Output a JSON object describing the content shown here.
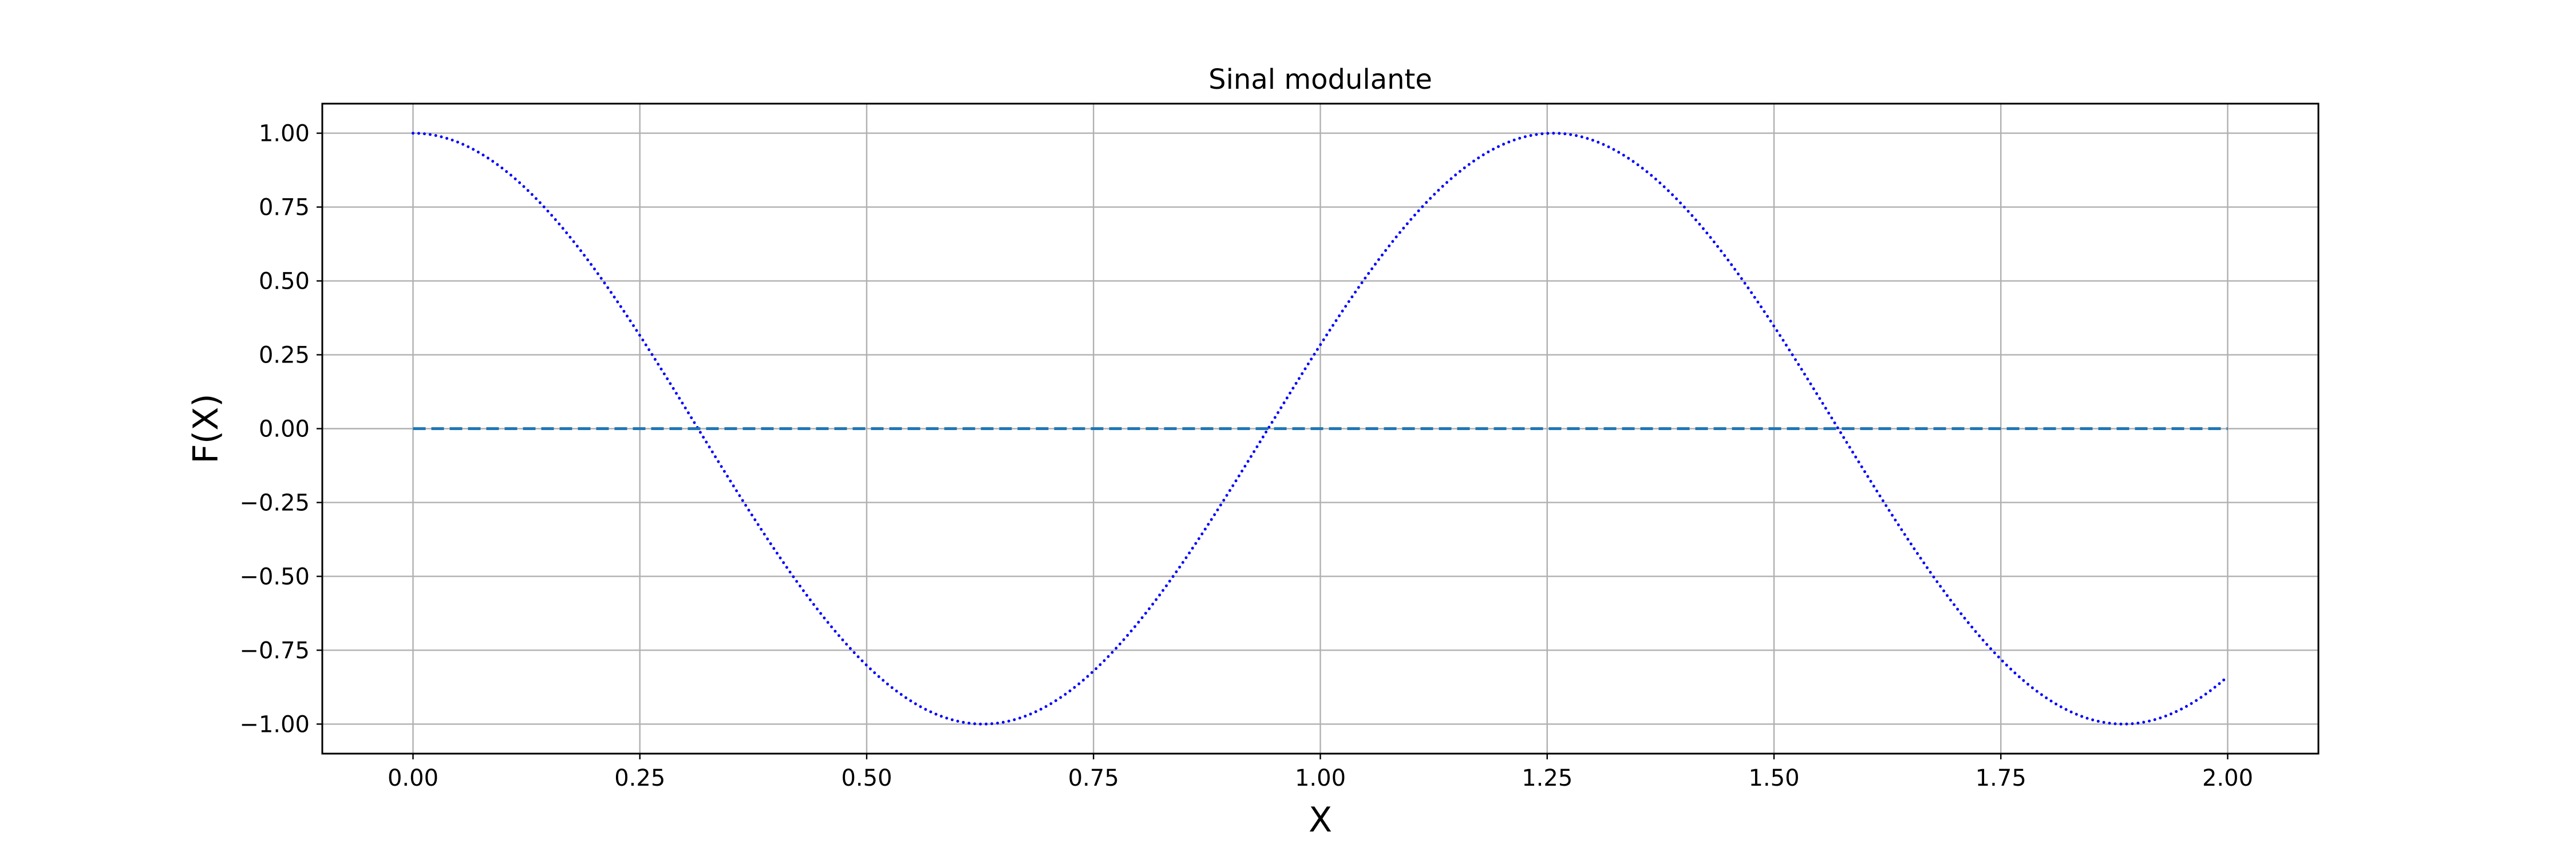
{
  "chart_data": {
    "type": "line",
    "title": "Sinal modulante",
    "xlabel": "X",
    "ylabel": "F(X)",
    "xlim": [
      -0.1,
      2.1
    ],
    "ylim": [
      -1.1,
      1.1
    ],
    "xticks": [
      0.0,
      0.25,
      0.5,
      0.75,
      1.0,
      1.25,
      1.5,
      1.75,
      2.0
    ],
    "xtick_labels": [
      "0.00",
      "0.25",
      "0.50",
      "0.75",
      "1.00",
      "1.25",
      "1.50",
      "1.75",
      "2.00"
    ],
    "yticks": [
      1.0,
      0.75,
      0.5,
      0.25,
      0.0,
      -0.25,
      -0.5,
      -0.75,
      -1.0
    ],
    "ytick_labels": [
      "1.00",
      "0.75",
      "0.50",
      "0.25",
      "0.00",
      "−0.25",
      "−0.50",
      "−0.75",
      "−1.00"
    ],
    "grid": true,
    "series": [
      {
        "color": "#0000ff",
        "style": "dotted",
        "x": [
          0.0,
          0.05,
          0.1,
          0.15,
          0.2,
          0.25,
          0.3,
          0.35,
          0.4,
          0.45,
          0.5,
          0.55,
          0.6,
          0.65,
          0.7,
          0.75,
          0.8,
          0.85,
          0.9,
          0.95,
          1.0,
          1.05,
          1.1,
          1.15,
          1.2,
          1.25,
          1.3,
          1.35,
          1.4,
          1.45,
          1.5,
          1.55,
          1.6,
          1.65,
          1.7,
          1.75,
          1.8,
          1.85,
          1.9,
          1.95,
          2.0
        ],
        "y": [
          1.0,
          0.969,
          0.876,
          0.729,
          0.536,
          0.309,
          0.063,
          -0.187,
          -0.426,
          -0.637,
          -0.809,
          -0.93,
          -0.992,
          -0.992,
          -0.93,
          -0.809,
          -0.637,
          -0.426,
          -0.187,
          0.063,
          0.309,
          0.536,
          0.729,
          0.876,
          0.969,
          1.0,
          0.969,
          0.876,
          0.729,
          0.536,
          0.309,
          0.063,
          -0.187,
          -0.426,
          -0.637,
          -0.809,
          -0.93,
          -0.992,
          -0.992,
          -0.93,
          -0.809
        ]
      },
      {
        "color": "#1f77b4",
        "style": "dashed",
        "x": [
          0.0,
          2.0
        ],
        "y": [
          0.0,
          0.0
        ]
      }
    ]
  }
}
